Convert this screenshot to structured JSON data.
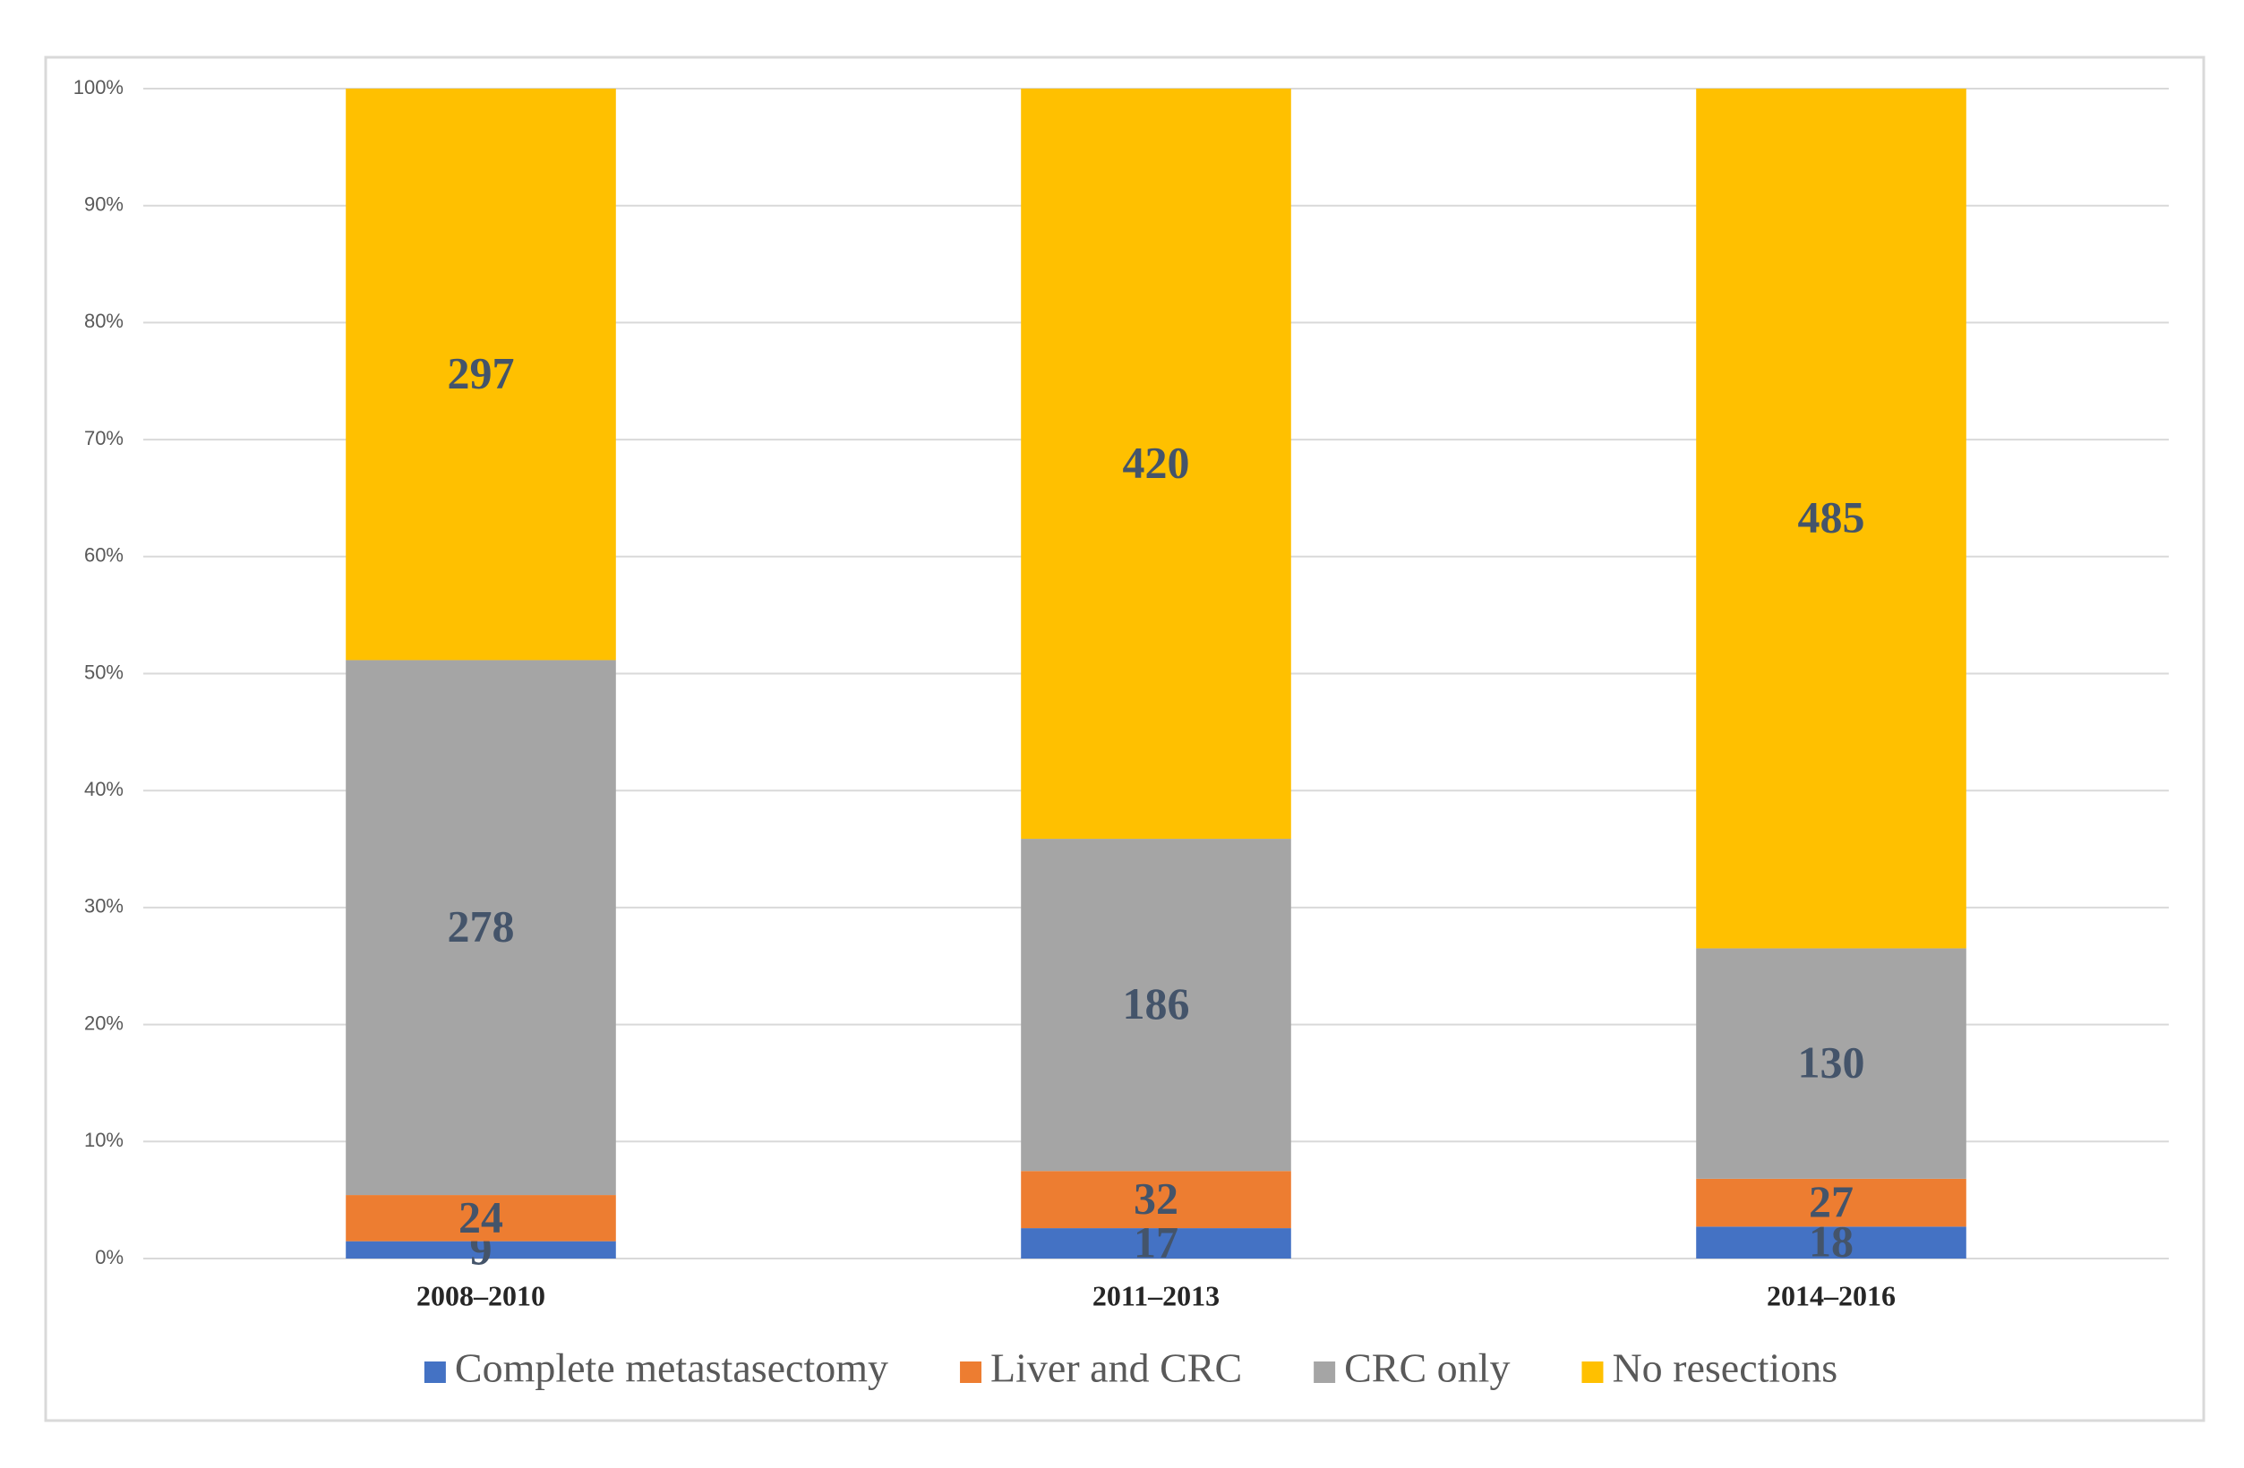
{
  "chart_data": {
    "type": "bar",
    "stacking": "percent",
    "categories": [
      "2008–2010",
      "2011–2013",
      "2014–2016"
    ],
    "series": [
      {
        "name": "Complete metastasectomy",
        "color": "#4472c4",
        "values": [
          9,
          17,
          18
        ]
      },
      {
        "name": "Liver and CRC",
        "color": "#ed7d31",
        "values": [
          24,
          32,
          27
        ]
      },
      {
        "name": "CRC only",
        "color": "#a5a5a5",
        "values": [
          278,
          186,
          130
        ]
      },
      {
        "name": "No resections",
        "color": "#ffc000",
        "values": [
          297,
          420,
          485
        ]
      }
    ],
    "ylim": [
      0,
      100
    ],
    "yticks": [
      {
        "value": 0,
        "label": "0%"
      },
      {
        "value": 10,
        "label": "10%"
      },
      {
        "value": 20,
        "label": "20%"
      },
      {
        "value": 30,
        "label": "30%"
      },
      {
        "value": 40,
        "label": "40%"
      },
      {
        "value": 50,
        "label": "50%"
      },
      {
        "value": 60,
        "label": "60%"
      },
      {
        "value": 70,
        "label": "70%"
      },
      {
        "value": 80,
        "label": "80%"
      },
      {
        "value": 90,
        "label": "90%"
      },
      {
        "value": 100,
        "label": "100%"
      }
    ],
    "grid": true,
    "legend": "bottom"
  }
}
